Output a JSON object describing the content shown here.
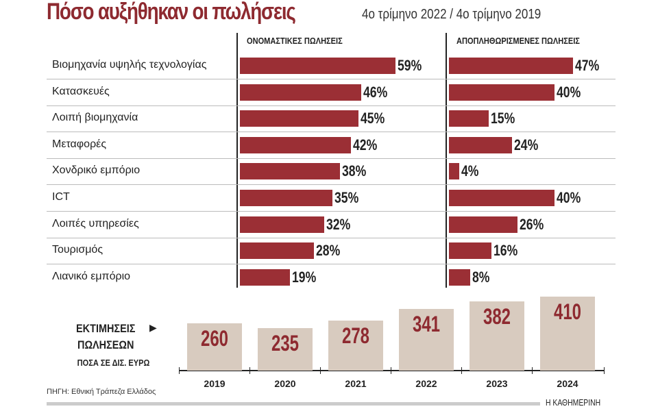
{
  "chart_data": [
    {
      "type": "bar",
      "orientation": "horizontal",
      "title": "Πόσο αυξήθηκαν οι πωλήσεις",
      "subtitle": "4ο τρίμηνο 2022 / 4ο τρίμηνο 2019",
      "categories": [
        "Βιομηχανία υψηλής τεχνολογίας",
        "Κατασκευές",
        "Λοιπή βιομηχανία",
        "Μεταφορές",
        "Χονδρικό εμπόριο",
        "ICT",
        "Λοιπές υπηρεσίες",
        "Τουρισμός",
        "Λιανικό εμπόριο"
      ],
      "series": [
        {
          "name": "ΟΝΟΜΑΣΤΙΚΕΣ ΠΩΛΗΣΕΙΣ",
          "values": [
            59,
            46,
            45,
            42,
            38,
            35,
            32,
            28,
            19
          ]
        },
        {
          "name": "ΑΠΟΠΛΗΘΩΡΙΣΜΕΝΕΣ ΠΩΛΗΣΕΙΣ",
          "values": [
            47,
            40,
            15,
            24,
            4,
            40,
            26,
            16,
            8
          ]
        }
      ],
      "value_suffix": "%",
      "color": "#9b2f35"
    },
    {
      "type": "bar",
      "title": "ΕΚΤΙΜΗΣΕΙΣ ΠΩΛΗΣΕΩΝ",
      "ylabel": "ΠΟΣΑ ΣΕ ΔΙΣ. ΕΥΡΩ",
      "categories": [
        "2019",
        "2020",
        "2021",
        "2022",
        "2023",
        "2024"
      ],
      "values": [
        260,
        235,
        278,
        341,
        382,
        410
      ],
      "color": "#d8cbbf",
      "label_color": "#8e2a30"
    }
  ],
  "source": "ΠΗΓΗ: Εθνική Τράπεζα Ελλάδος",
  "brand": "Η ΚΑΘΗΜΕΡΙΝΗ",
  "labels": {
    "triangle": "▶"
  }
}
